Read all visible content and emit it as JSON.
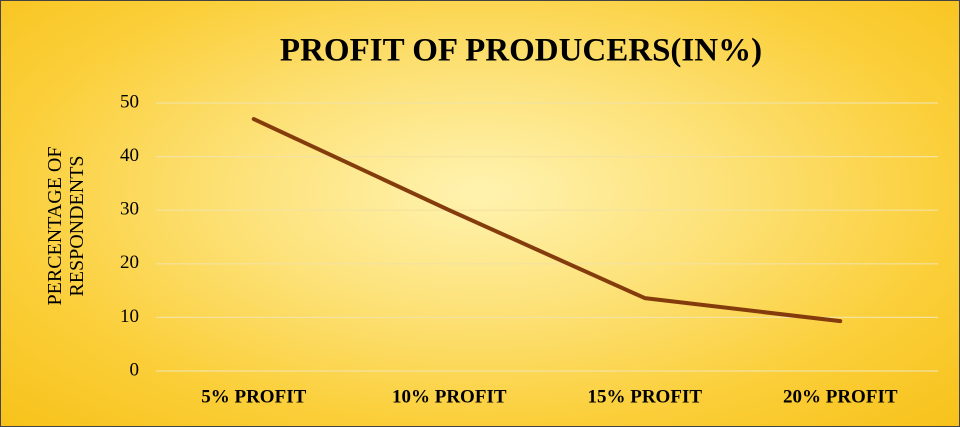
{
  "chart_data": {
    "type": "line",
    "title": "PROFIT OF PRODUCERS(IN%)",
    "ylabel": "PERCENTAGE OF RESPONDENTS",
    "categories": [
      "5% PROFIT",
      "10% PROFIT",
      "15% PROFIT",
      "20% PROFIT"
    ],
    "values": [
      47,
      30,
      13.6,
      9.3
    ],
    "color": "#843c0c",
    "ylim": [
      0,
      50
    ],
    "yticks": [
      0,
      10,
      20,
      30,
      40,
      50
    ],
    "grid": true
  }
}
